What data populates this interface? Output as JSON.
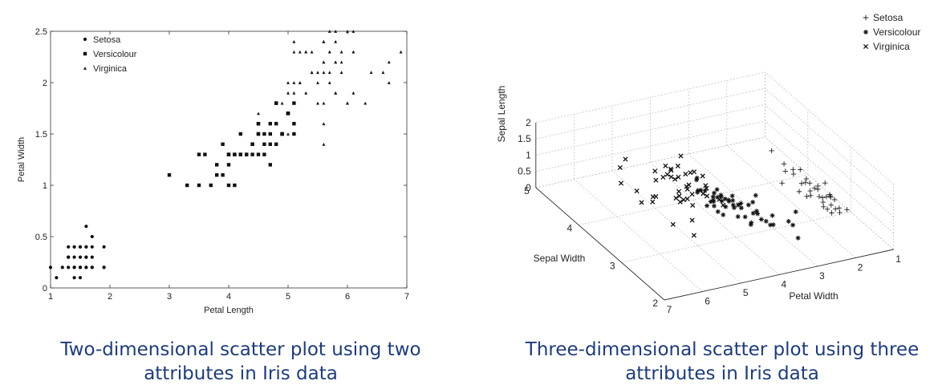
{
  "chart_data": [
    {
      "type": "scatter",
      "title": "",
      "xlabel": "Petal Length",
      "ylabel": "Petal Width",
      "xlim": [
        1,
        7
      ],
      "ylim": [
        0,
        2.5
      ],
      "xticks": [
        1,
        2,
        3,
        4,
        5,
        6,
        7
      ],
      "yticks": [
        0,
        0.5,
        1,
        1.5,
        2,
        2.5
      ],
      "grid": false,
      "legend_position": "top-left",
      "series": [
        {
          "name": "Setosa",
          "marker": "circle",
          "x": [
            1.0,
            1.1,
            1.2,
            1.3,
            1.3,
            1.4,
            1.4,
            1.4,
            1.5,
            1.5,
            1.5,
            1.6,
            1.6,
            1.7,
            1.9,
            1.3,
            1.4,
            1.5,
            1.6,
            1.7,
            1.9,
            1.3,
            1.4,
            1.5,
            1.6,
            1.7,
            1.4,
            1.5,
            1.6,
            1.7,
            1.9,
            1.6,
            1.7,
            1.4,
            1.5,
            1.6
          ],
          "y": [
            0.2,
            0.1,
            0.2,
            0.2,
            0.3,
            0.2,
            0.3,
            0.4,
            0.2,
            0.3,
            0.4,
            0.2,
            0.4,
            0.5,
            0.4,
            0.4,
            0.2,
            0.1,
            0.2,
            0.2,
            0.2,
            0.3,
            0.4,
            0.2,
            0.3,
            0.3,
            0.1,
            0.4,
            0.6,
            0.4,
            0.2,
            0.3,
            0.2,
            0.2,
            0.2,
            0.4
          ]
        },
        {
          "name": "Versicolour",
          "marker": "square",
          "x": [
            3.0,
            3.3,
            3.5,
            3.6,
            3.7,
            3.8,
            3.9,
            3.9,
            4.0,
            4.0,
            4.0,
            4.1,
            4.1,
            4.2,
            4.2,
            4.3,
            4.4,
            4.4,
            4.5,
            4.5,
            4.6,
            4.6,
            4.7,
            4.7,
            4.8,
            4.8,
            4.9,
            4.9,
            5.0,
            5.0,
            5.1,
            5.1,
            3.5,
            3.8,
            4.0,
            4.1,
            4.2,
            4.4,
            4.5,
            4.5,
            4.6,
            4.7,
            4.8,
            4.9,
            5.0,
            5.1,
            4.3,
            4.5,
            4.7,
            4.8
          ],
          "y": [
            1.1,
            1.0,
            1.0,
            1.3,
            1.0,
            1.1,
            1.1,
            1.4,
            1.0,
            1.2,
            1.3,
            1.0,
            1.3,
            1.3,
            1.5,
            1.3,
            1.3,
            1.4,
            1.3,
            1.5,
            1.3,
            1.5,
            1.2,
            1.4,
            1.4,
            1.8,
            1.5,
            1.5,
            1.7,
            1.7,
            1.6,
            1.8,
            1.3,
            1.2,
            1.3,
            1.3,
            1.3,
            1.4,
            1.5,
            1.6,
            1.4,
            1.6,
            1.6,
            1.5,
            1.7,
            1.5,
            1.3,
            1.6,
            1.5,
            1.8
          ]
        },
        {
          "name": "Virginica",
          "marker": "triangle",
          "x": [
            4.5,
            4.8,
            4.9,
            5.0,
            5.1,
            5.1,
            5.2,
            5.3,
            5.4,
            5.5,
            5.6,
            5.6,
            5.7,
            5.8,
            5.9,
            6.0,
            6.1,
            6.3,
            6.4,
            6.6,
            6.7,
            6.9,
            5.0,
            5.1,
            5.2,
            5.3,
            5.4,
            5.5,
            5.6,
            5.7,
            5.8,
            5.9,
            6.0,
            6.1,
            5.0,
            5.1,
            5.2,
            5.3,
            5.5,
            5.6,
            5.7,
            5.8,
            5.9,
            6.0,
            6.1,
            6.7,
            5.6,
            5.8,
            5.1,
            5.8,
            5.6,
            5.8,
            6.1,
            5.3,
            5.6,
            5.7,
            5.4,
            6.0,
            5.7,
            5.6
          ],
          "y": [
            1.7,
            1.8,
            1.8,
            2.0,
            2.0,
            2.4,
            2.3,
            1.9,
            2.1,
            2.1,
            1.4,
            1.8,
            2.5,
            2.2,
            2.3,
            2.5,
            2.5,
            1.8,
            2.1,
            2.1,
            2.2,
            2.3,
            1.5,
            1.9,
            2.0,
            2.3,
            2.3,
            1.8,
            2.4,
            2.3,
            1.9,
            2.1,
            1.8,
            2.3,
            1.9,
            2.3,
            2.0,
            2.3,
            2.0,
            2.2,
            2.1,
            2.4,
            2.2,
            1.8,
            1.9,
            2.0,
            1.6,
            1.9,
            1.8,
            2.2,
            2.1,
            2.5,
            2.3,
            2.3,
            2.4,
            2.0,
            2.1,
            1.8,
            2.3,
            2.2
          ]
        }
      ]
    },
    {
      "type": "scatter",
      "projection": "3d",
      "title": "",
      "xlabel": "Petal Width",
      "ylabel": "Sepal Width",
      "zlabel": "Sepal Length",
      "xlim": [
        1,
        7
      ],
      "ylim": [
        2,
        5
      ],
      "zlim": [
        0,
        2
      ],
      "xticks": [
        1,
        2,
        3,
        4,
        5,
        6,
        7
      ],
      "yticks": [
        2,
        3,
        4,
        5
      ],
      "zticks": [
        0,
        0.5,
        1,
        1.5,
        2
      ],
      "grid": true,
      "legend_position": "top-right",
      "series": [
        {
          "name": "Setosa",
          "marker": "plus",
          "x": [
            1.0,
            1.1,
            1.2,
            1.3,
            1.3,
            1.4,
            1.4,
            1.5,
            1.5,
            1.6,
            1.6,
            1.7,
            1.9,
            1.4,
            1.5,
            1.3,
            1.2,
            1.4,
            1.5,
            1.6,
            1.1,
            1.5,
            1.4,
            1.3,
            1.6,
            1.7,
            1.5,
            1.4,
            1.3,
            1.5,
            1.9,
            1.2,
            1.5,
            1.4,
            1.6
          ],
          "y": [
            3.6,
            3.4,
            3.2,
            3.0,
            3.5,
            3.1,
            3.3,
            3.4,
            3.7,
            3.4,
            3.8,
            3.9,
            3.8,
            2.9,
            3.0,
            3.5,
            4.0,
            4.2,
            4.4,
            3.1,
            3.0,
            3.2,
            3.6,
            3.3,
            3.5,
            3.4,
            3.1,
            3.0,
            3.2,
            3.9,
            3.4,
            3.3,
            3.5,
            3.7,
            3.2
          ],
          "z": [
            0.2,
            0.1,
            0.2,
            0.2,
            0.3,
            0.2,
            0.2,
            0.4,
            0.2,
            0.2,
            0.4,
            0.4,
            0.2,
            0.2,
            0.1,
            0.2,
            0.2,
            0.2,
            0.4,
            0.2,
            0.1,
            0.2,
            0.3,
            0.2,
            0.6,
            0.2,
            0.1,
            0.2,
            0.3,
            0.4,
            0.4,
            0.2,
            0.2,
            0.2,
            0.4
          ]
        },
        {
          "name": "Versicolour",
          "marker": "asterisk",
          "x": [
            3.0,
            3.3,
            3.5,
            3.6,
            3.7,
            3.8,
            3.9,
            4.0,
            4.0,
            4.1,
            4.2,
            4.3,
            4.4,
            4.5,
            4.5,
            4.6,
            4.7,
            4.7,
            4.8,
            4.9,
            5.0,
            5.1,
            4.0,
            4.2,
            4.4,
            4.5,
            4.6,
            4.7,
            4.8,
            4.4,
            4.1,
            3.9,
            4.5,
            4.7,
            4.0,
            4.3,
            4.6,
            4.9,
            4.5,
            4.2,
            3.5,
            3.9,
            4.7,
            4.4,
            4.5,
            4.1,
            4.6,
            3.3,
            4.8,
            5.0
          ],
          "y": [
            2.5,
            2.4,
            2.0,
            2.9,
            2.4,
            2.7,
            2.5,
            2.3,
            2.6,
            2.7,
            2.9,
            2.9,
            3.0,
            2.2,
            2.8,
            2.9,
            3.2,
            2.8,
            2.8,
            2.5,
            3.0,
            2.7,
            2.2,
            3.0,
            2.6,
            2.9,
            3.0,
            2.9,
            3.2,
            2.3,
            3.0,
            2.7,
            3.0,
            3.1,
            2.5,
            2.8,
            2.8,
            3.1,
            2.5,
            2.7,
            2.6,
            2.8,
            3.3,
            2.9,
            2.6,
            2.8,
            3.0,
            2.3,
            2.8,
            2.7
          ],
          "z": [
            1.1,
            1.0,
            1.0,
            1.3,
            1.0,
            1.1,
            1.1,
            1.3,
            1.2,
            1.0,
            1.3,
            1.3,
            1.4,
            1.5,
            1.3,
            1.5,
            1.4,
            1.2,
            1.8,
            1.5,
            1.7,
            1.6,
            1.3,
            1.2,
            1.2,
            1.5,
            1.4,
            1.4,
            1.8,
            1.3,
            1.3,
            1.4,
            1.6,
            1.5,
            1.3,
            1.3,
            1.5,
            1.5,
            1.7,
            1.3,
            1.0,
            1.2,
            1.6,
            1.4,
            1.5,
            1.3,
            1.3,
            1.0,
            1.4,
            1.7
          ]
        },
        {
          "name": "Virginica",
          "marker": "cross",
          "x": [
            4.5,
            4.8,
            4.9,
            5.0,
            5.1,
            5.1,
            5.2,
            5.3,
            5.4,
            5.5,
            5.6,
            5.6,
            5.7,
            5.8,
            5.9,
            6.0,
            6.1,
            6.3,
            6.4,
            6.6,
            6.7,
            6.9,
            5.0,
            5.1,
            5.3,
            5.5,
            5.7,
            5.8,
            6.0,
            6.1,
            5.6,
            5.4,
            5.1,
            5.2,
            5.8,
            5.6,
            5.5,
            4.9,
            5.0,
            5.6,
            6.7,
            6.1,
            5.6,
            5.7,
            5.8
          ],
          "y": [
            2.5,
            3.0,
            2.5,
            2.5,
            3.2,
            3.0,
            2.7,
            3.0,
            3.4,
            2.8,
            2.6,
            3.1,
            3.0,
            2.8,
            3.2,
            2.2,
            3.0,
            2.9,
            2.8,
            3.0,
            3.3,
            3.1,
            2.8,
            2.7,
            3.2,
            3.0,
            2.5,
            3.0,
            3.8,
            2.6,
            2.8,
            3.1,
            2.8,
            3.0,
            2.7,
            2.6,
            2.8,
            3.3,
            3.4,
            2.9,
            2.8,
            3.0,
            3.0,
            3.0,
            3.1
          ],
          "z": [
            1.7,
            1.8,
            1.8,
            2.0,
            2.0,
            2.3,
            2.0,
            1.9,
            2.1,
            2.1,
            1.4,
            2.4,
            2.5,
            1.9,
            2.3,
            1.5,
            1.8,
            1.8,
            2.1,
            2.1,
            2.5,
            2.3,
            2.0,
            1.9,
            2.3,
            1.8,
            2.0,
            2.4,
            2.0,
            1.4,
            1.8,
            2.1,
            2.4,
            2.3,
            1.9,
            2.2,
            1.8,
            1.5,
            2.3,
            1.8,
            2.0,
            2.3,
            2.2,
            2.3,
            2.2
          ]
        }
      ]
    }
  ],
  "captions": {
    "left": "Two-dimensional scatter plot using two attributes in Iris data",
    "right": "Three-dimensional scatter plot using three attributes in Iris data"
  }
}
